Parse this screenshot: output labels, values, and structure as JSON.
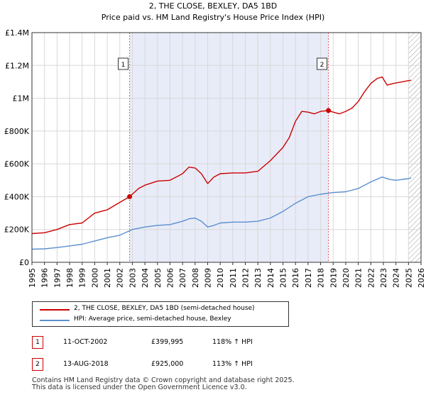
{
  "chart_data": {
    "type": "line",
    "title": "2, THE CLOSE, BEXLEY, DA5 1BD",
    "subtitle": "Price paid vs. HM Land Registry's House Price Index (HPI)",
    "xlabel": "",
    "ylabel": "",
    "xlim": [
      1995,
      2026
    ],
    "ylim": [
      0,
      1400000
    ],
    "y_ticks": [
      {
        "value": 0,
        "label": "£0"
      },
      {
        "value": 200000,
        "label": "£200K"
      },
      {
        "value": 400000,
        "label": "£400K"
      },
      {
        "value": 600000,
        "label": "£600K"
      },
      {
        "value": 800000,
        "label": "£800K"
      },
      {
        "value": 1000000,
        "label": "£1M"
      },
      {
        "value": 1200000,
        "label": "£1.2M"
      },
      {
        "value": 1400000,
        "label": "£1.4M"
      }
    ],
    "x_ticks": [
      "1995",
      "1996",
      "1997",
      "1998",
      "1999",
      "2000",
      "2001",
      "2002",
      "2003",
      "2004",
      "2005",
      "2006",
      "2007",
      "2008",
      "2009",
      "2010",
      "2011",
      "2012",
      "2013",
      "2014",
      "2015",
      "2016",
      "2017",
      "2018",
      "2019",
      "2020",
      "2021",
      "2022",
      "2023",
      "2024",
      "2025",
      "2026"
    ],
    "grid": true,
    "shaded_between": [
      2002.78,
      2018.62
    ],
    "future_hatch_from": 2025.0,
    "series": [
      {
        "name": "2, THE CLOSE, BEXLEY, DA5 1BD (semi-detached house)",
        "color": "#cc0000",
        "x": [
          1995,
          1996,
          1997,
          1998,
          1999,
          2000,
          2001,
          2002,
          2002.78,
          2003.5,
          2004,
          2005,
          2006,
          2007,
          2007.5,
          2008,
          2008.5,
          2009,
          2009.5,
          2010,
          2011,
          2012,
          2013,
          2014,
          2015,
          2015.5,
          2016,
          2016.5,
          2017,
          2017.5,
          2018,
          2018.62,
          2019,
          2019.5,
          2020,
          2020.5,
          2021,
          2021.5,
          2022,
          2022.5,
          2022.9,
          2023.3,
          2023.8,
          2024.5,
          2025.2
        ],
        "y": [
          175000,
          180000,
          200000,
          230000,
          240000,
          300000,
          320000,
          365000,
          399995,
          450000,
          470000,
          495000,
          500000,
          540000,
          580000,
          575000,
          540000,
          480000,
          520000,
          540000,
          545000,
          545000,
          555000,
          620000,
          700000,
          760000,
          860000,
          920000,
          915000,
          905000,
          920000,
          925000,
          915000,
          905000,
          920000,
          940000,
          980000,
          1040000,
          1090000,
          1120000,
          1130000,
          1080000,
          1090000,
          1100000,
          1110000
        ]
      },
      {
        "name": "HPI: Average price, semi-detached house, Bexley",
        "color": "#5b8fcf",
        "x": [
          1995,
          1996,
          1997,
          1998,
          1999,
          2000,
          2001,
          2002,
          2003,
          2004,
          2005,
          2006,
          2007,
          2007.5,
          2008,
          2008.5,
          2009,
          2009.5,
          2010,
          2011,
          2012,
          2013,
          2014,
          2015,
          2016,
          2017,
          2018,
          2019,
          2020,
          2021,
          2022,
          2022.9,
          2023.5,
          2024,
          2025,
          2025.2
        ],
        "y": [
          80000,
          82000,
          90000,
          100000,
          110000,
          130000,
          150000,
          165000,
          200000,
          215000,
          225000,
          230000,
          250000,
          265000,
          270000,
          250000,
          215000,
          225000,
          240000,
          245000,
          245000,
          250000,
          270000,
          310000,
          360000,
          400000,
          415000,
          425000,
          430000,
          450000,
          490000,
          520000,
          505000,
          500000,
          510000,
          515000
        ]
      }
    ],
    "annotations": [
      {
        "label": "1",
        "x": 2002.78,
        "y": 399995
      },
      {
        "label": "2",
        "x": 2018.62,
        "y": 925000
      }
    ]
  },
  "legend": [
    {
      "label": "2, THE CLOSE, BEXLEY, DA5 1BD (semi-detached house)",
      "color": "#cc0000"
    },
    {
      "label": "HPI: Average price, semi-detached house, Bexley",
      "color": "#5b8fcf"
    }
  ],
  "sales": [
    {
      "num": "1",
      "date": "11-OCT-2002",
      "price": "£399,995",
      "hpi": "118% ↑ HPI"
    },
    {
      "num": "2",
      "date": "13-AUG-2018",
      "price": "£925,000",
      "hpi": "113% ↑ HPI"
    }
  ],
  "footer": {
    "line1": "Contains HM Land Registry data © Crown copyright and database right 2025.",
    "line2": "This data is licensed under the Open Government Licence v3.0."
  }
}
